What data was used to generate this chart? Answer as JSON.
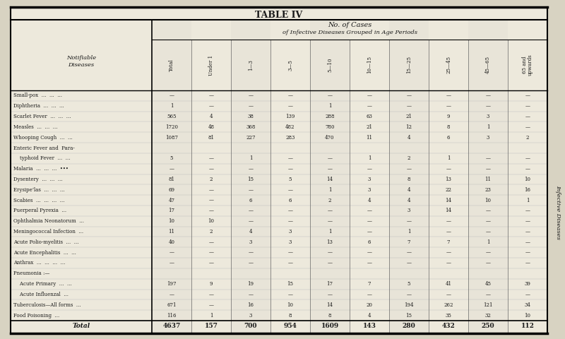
{
  "title": "TABLE IV",
  "subtitle1": "No. of Cases",
  "subtitle2": "of Infective Diseases Grouped in Age Periods",
  "bg_color": "#d8d3c2",
  "table_bg": "#ede9dc",
  "text_color": "#1a1a1a",
  "col_labels_rotated": [
    "Total",
    "Under 1",
    "1—3",
    "3—5",
    "5—10",
    "10—15",
    "15—25",
    "25—45",
    "45—65",
    "65 and\nupwards"
  ],
  "rows": [
    {
      "disease": "Small-pox  ...  ...  ...",
      "indent": false,
      "values": [
        "—",
        "—",
        "—",
        "—",
        "—",
        "—",
        "—",
        "—",
        "—",
        "—"
      ]
    },
    {
      "disease": "Diphtheria  ...  ...  ...",
      "indent": false,
      "values": [
        "1",
        "—",
        "—",
        "—",
        "1",
        "—",
        "—",
        "—",
        "—",
        "—"
      ]
    },
    {
      "disease": "Scarlet Fever  ...  ...  ...",
      "indent": false,
      "values": [
        "565",
        "4",
        "38",
        "139",
        "288",
        "63",
        "21",
        "9",
        "3",
        "—"
      ]
    },
    {
      "disease": "Measles  ...  ...  ...",
      "indent": false,
      "values": [
        "1720",
        "48",
        "368",
        "482",
        "780",
        "21",
        "12",
        "8",
        "1",
        "—"
      ]
    },
    {
      "disease": "Whooping Cough  ...  ...",
      "indent": false,
      "values": [
        "1087",
        "81",
        "227",
        "283",
        "470",
        "11",
        "4",
        "6",
        "3",
        "2"
      ]
    },
    {
      "disease": "Enteric Fever and  Para-",
      "indent": false,
      "values": [
        "",
        "",
        "",
        "",
        "",
        "",
        "",
        "",
        "",
        ""
      ]
    },
    {
      "disease": "    typhoid Fever  ...  ...",
      "indent": true,
      "values": [
        "5",
        "—",
        "1",
        "—",
        "—",
        "1",
        "2",
        "1",
        "—",
        "—"
      ]
    },
    {
      "disease": "Malaria  ...  ...  ...  •••",
      "indent": false,
      "values": [
        "—",
        "—",
        "—",
        "—",
        "—",
        "—",
        "—",
        "—",
        "—",
        "—"
      ]
    },
    {
      "disease": "Dysentery  ...  ...  ...",
      "indent": false,
      "values": [
        "81",
        "2",
        "15",
        "5",
        "14",
        "3",
        "8",
        "13",
        "11",
        "10"
      ]
    },
    {
      "disease": "Erysipe’las  ...  ...  ...",
      "indent": false,
      "values": [
        "69",
        "—",
        "—",
        "—",
        "1",
        "3",
        "4",
        "22",
        "23",
        "16"
      ]
    },
    {
      "disease": "Scabies  ...  ...  ...  ...",
      "indent": false,
      "values": [
        "47",
        "—",
        "6",
        "6",
        "2",
        "4",
        "4",
        "14",
        "10",
        "1"
      ]
    },
    {
      "disease": "Puerperal Pyrexia  ...",
      "indent": false,
      "values": [
        "17",
        "—",
        "—",
        "—",
        "—",
        "—",
        "3",
        "14",
        "—",
        "—"
      ]
    },
    {
      "disease": "Ophthalmia Neonatorum  ...",
      "indent": false,
      "values": [
        "10",
        "10",
        "—",
        "—",
        "—",
        "—",
        "—",
        "—",
        "—",
        "—"
      ]
    },
    {
      "disease": "Meningococcal Infection  ...",
      "indent": false,
      "values": [
        "11",
        "2",
        "4",
        "3",
        "1",
        "—",
        "1",
        "—",
        "—",
        "—"
      ]
    },
    {
      "disease": "Acute Polio-myelitis  ...  ...",
      "indent": false,
      "values": [
        "40",
        "—",
        "3",
        "3",
        "13",
        "6",
        "7",
        "7",
        "1",
        "—"
      ]
    },
    {
      "disease": "Acute Encephalitis  ...  ...",
      "indent": false,
      "values": [
        "—",
        "—",
        "—",
        "—",
        "—",
        "—",
        "—",
        "—",
        "—",
        "—"
      ]
    },
    {
      "disease": "Anthrax  ...  ...  ...  ...",
      "indent": false,
      "values": [
        "—",
        "—",
        "—",
        "—",
        "—",
        "—",
        "—",
        "—",
        "—",
        "—"
      ]
    },
    {
      "disease": "Pneumonia :—",
      "indent": false,
      "values": [
        "",
        "",
        "",
        "",
        "",
        "",
        "",
        "",
        "",
        ""
      ]
    },
    {
      "disease": "    Acute Primary  ...  ...",
      "indent": true,
      "values": [
        "197",
        "9",
        "19",
        "15",
        "17",
        "7",
        "5",
        "41",
        "45",
        "39"
      ]
    },
    {
      "disease": "    Acute Influenzal  ...",
      "indent": true,
      "values": [
        "—",
        "—",
        "—",
        "—",
        "—",
        "—",
        "—",
        "—",
        "—",
        "—"
      ]
    },
    {
      "disease": "Tuberculosis—All forms  ...",
      "indent": false,
      "values": [
        "671",
        "—",
        "16",
        "10",
        "14",
        "20",
        "194",
        "262",
        "121",
        "34"
      ]
    },
    {
      "disease": "Food Poisoning  ...",
      "indent": false,
      "values": [
        "116",
        "1",
        "3",
        "8",
        "8",
        "4",
        "15",
        "35",
        "32",
        "10"
      ]
    }
  ],
  "total_row": [
    "4637",
    "157",
    "700",
    "954",
    "1609",
    "143",
    "280",
    "432",
    "250",
    "112"
  ],
  "side_label": "Infective Diseases"
}
